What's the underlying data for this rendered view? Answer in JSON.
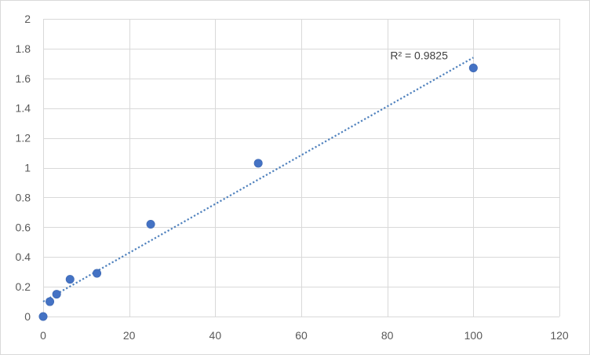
{
  "chart_data": {
    "type": "scatter",
    "title": "",
    "xlabel": "",
    "ylabel": "",
    "xlim": [
      0,
      120
    ],
    "ylim": [
      0,
      2
    ],
    "x_ticks": [
      0,
      20,
      40,
      60,
      80,
      100,
      120
    ],
    "y_ticks": [
      0,
      0.2,
      0.4,
      0.6,
      0.8,
      1,
      1.2,
      1.4,
      1.6,
      1.8,
      2
    ],
    "x_tick_labels": [
      "0",
      "20",
      "40",
      "60",
      "80",
      "100",
      "120"
    ],
    "y_tick_labels": [
      "0",
      "0.2",
      "0.4",
      "0.6",
      "0.8",
      "1",
      "1.2",
      "1.4",
      "1.6",
      "1.8",
      "2"
    ],
    "grid": true,
    "legend": "none",
    "series": [
      {
        "color": "#4472c4",
        "points": [
          {
            "x": 0,
            "y": 0.0
          },
          {
            "x": 1.56,
            "y": 0.1
          },
          {
            "x": 3.13,
            "y": 0.15
          },
          {
            "x": 6.25,
            "y": 0.25
          },
          {
            "x": 12.5,
            "y": 0.29
          },
          {
            "x": 25,
            "y": 0.62
          },
          {
            "x": 50,
            "y": 1.03
          },
          {
            "x": 100,
            "y": 1.67
          }
        ]
      }
    ],
    "trendline": {
      "type": "linear",
      "style": "dotted",
      "color": "#4f81bd",
      "x_start": 0,
      "x_end": 100,
      "y_start": 0.1,
      "y_end": 1.74,
      "annotation": "R² = 0.9825"
    }
  }
}
